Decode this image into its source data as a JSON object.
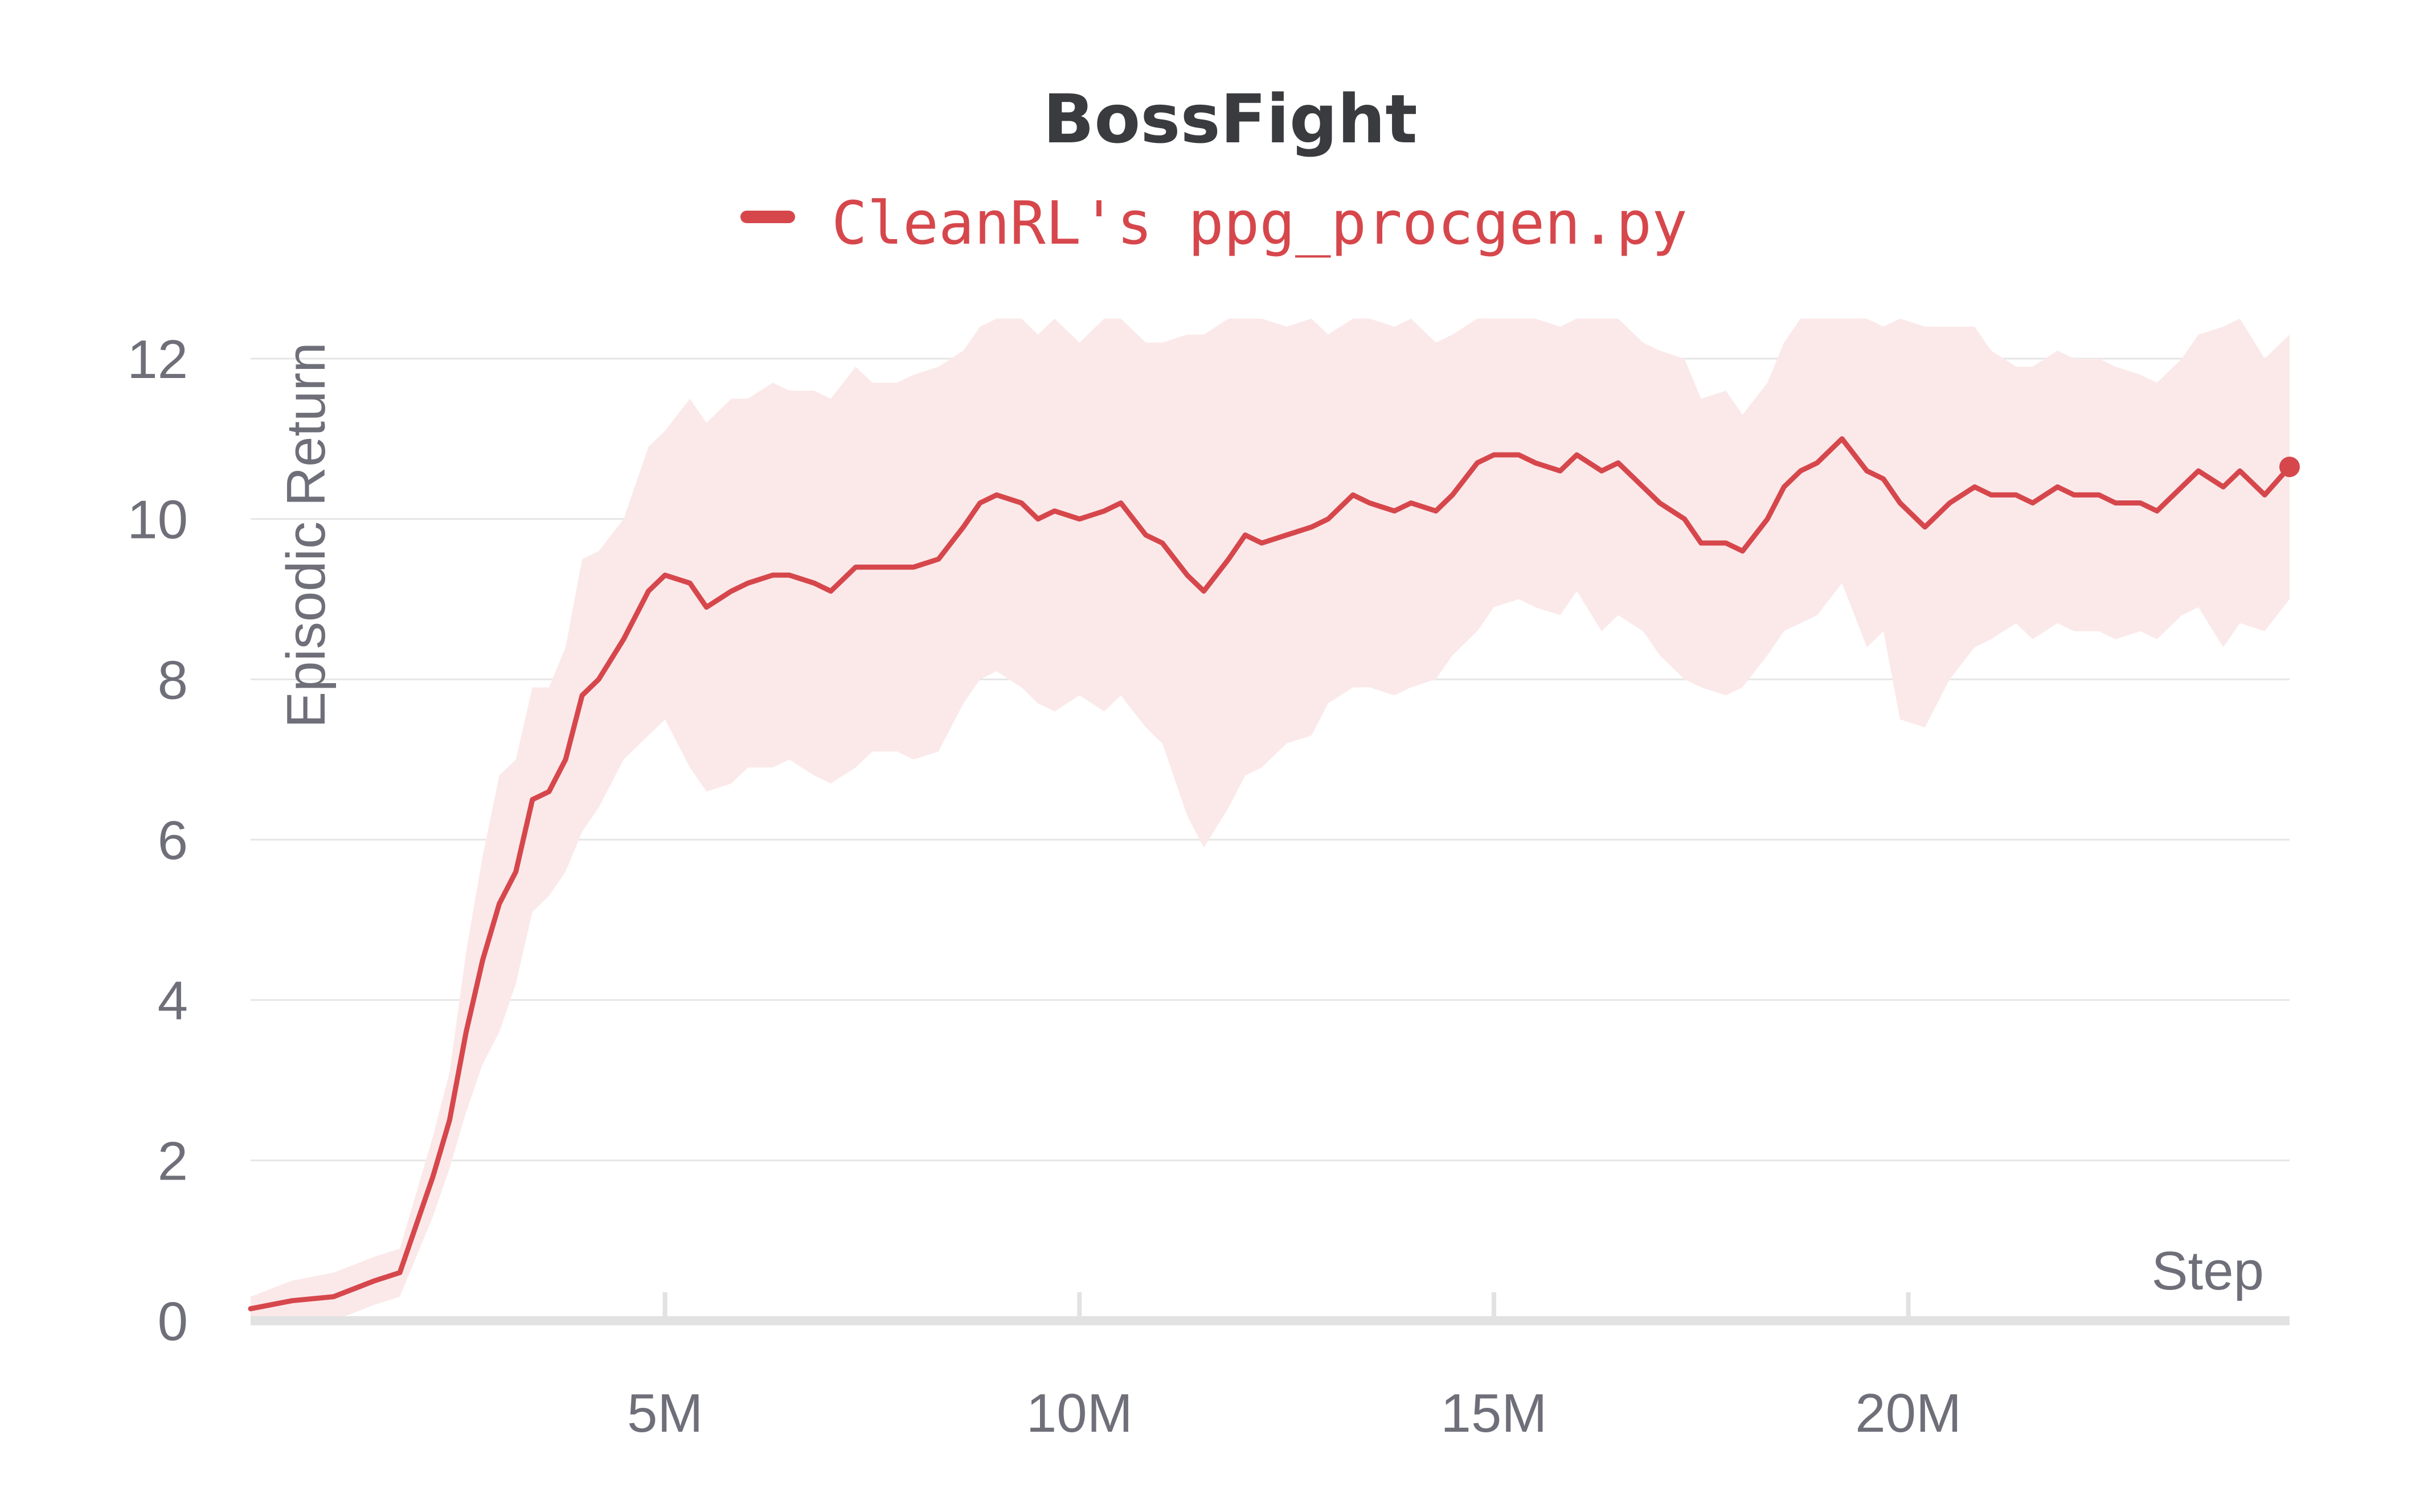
{
  "chart_data": {
    "type": "line",
    "title": "BossFight",
    "xlabel": "Step",
    "ylabel": "Episodic Return",
    "xlim": [
      0,
      24600000
    ],
    "ylim": [
      0,
      12
    ],
    "x_ticks": [
      5000000,
      10000000,
      15000000,
      20000000
    ],
    "x_tick_labels": [
      "5M",
      "10M",
      "15M",
      "20M"
    ],
    "y_ticks": [
      0,
      2,
      4,
      6,
      8,
      10,
      12
    ],
    "y_tick_labels": [
      "0",
      "2",
      "4",
      "6",
      "8",
      "10",
      "12"
    ],
    "grid": true,
    "legend_position": "top-center",
    "series": [
      {
        "name": "CleanRL's ppg_procgen.py",
        "color": "#d6474c",
        "band_color": "#fbe9ea",
        "x": [
          0,
          500000,
          1000000,
          1500000,
          1800000,
          2000000,
          2200000,
          2400000,
          2600000,
          2800000,
          3000000,
          3200000,
          3400000,
          3600000,
          3800000,
          4000000,
          4200000,
          4500000,
          4800000,
          5000000,
          5300000,
          5500000,
          5800000,
          6000000,
          6300000,
          6500000,
          6800000,
          7000000,
          7300000,
          7500000,
          7800000,
          8000000,
          8300000,
          8600000,
          8800000,
          9000000,
          9300000,
          9500000,
          9700000,
          10000000,
          10300000,
          10500000,
          10800000,
          11000000,
          11300000,
          11500000,
          11800000,
          12000000,
          12200000,
          12500000,
          12800000,
          13000000,
          13300000,
          13500000,
          13800000,
          14000000,
          14300000,
          14500000,
          14800000,
          15000000,
          15300000,
          15500000,
          15800000,
          16000000,
          16300000,
          16500000,
          16800000,
          17000000,
          17300000,
          17500000,
          17800000,
          18000000,
          18300000,
          18500000,
          18700000,
          18900000,
          19200000,
          19500000,
          19700000,
          19900000,
          20200000,
          20500000,
          20800000,
          21000000,
          21300000,
          21500000,
          21800000,
          22000000,
          22300000,
          22500000,
          22800000,
          23000000,
          23300000,
          23500000,
          23800000,
          24000000,
          24300000,
          24600000
        ],
        "values": [
          0.15,
          0.25,
          0.3,
          0.5,
          0.6,
          1.2,
          1.8,
          2.5,
          3.6,
          4.5,
          5.2,
          5.6,
          6.5,
          6.6,
          7.0,
          7.8,
          8.0,
          8.5,
          9.1,
          9.3,
          9.2,
          8.9,
          9.1,
          9.2,
          9.3,
          9.3,
          9.2,
          9.1,
          9.4,
          9.4,
          9.4,
          9.4,
          9.5,
          9.9,
          10.2,
          10.3,
          10.2,
          10.0,
          10.1,
          10.0,
          10.1,
          10.2,
          9.8,
          9.7,
          9.3,
          9.1,
          9.5,
          9.8,
          9.7,
          9.8,
          9.9,
          10.0,
          10.3,
          10.2,
          10.1,
          10.2,
          10.1,
          10.3,
          10.7,
          10.8,
          10.8,
          10.7,
          10.6,
          10.8,
          10.6,
          10.7,
          10.4,
          10.2,
          10.0,
          9.7,
          9.7,
          9.6,
          10.0,
          10.4,
          10.6,
          10.7,
          11.0,
          10.6,
          10.5,
          10.2,
          9.9,
          10.2,
          10.4,
          10.3,
          10.3,
          10.2,
          10.4,
          10.3,
          10.3,
          10.2,
          10.2,
          10.1,
          10.4,
          10.6,
          10.4,
          10.6,
          10.3,
          10.65
        ],
        "lower": [
          0.0,
          0.0,
          0.0,
          0.2,
          0.3,
          0.8,
          1.3,
          1.9,
          2.6,
          3.2,
          3.6,
          4.2,
          5.1,
          5.3,
          5.6,
          6.1,
          6.4,
          7.0,
          7.3,
          7.5,
          6.9,
          6.6,
          6.7,
          6.9,
          6.9,
          7.0,
          6.8,
          6.7,
          6.9,
          7.1,
          7.1,
          7.0,
          7.1,
          7.7,
          8.0,
          8.1,
          7.9,
          7.7,
          7.6,
          7.8,
          7.6,
          7.8,
          7.4,
          7.2,
          6.3,
          5.9,
          6.4,
          6.8,
          6.9,
          7.2,
          7.3,
          7.7,
          7.9,
          7.9,
          7.8,
          7.9,
          8.0,
          8.3,
          8.6,
          8.9,
          9.0,
          8.9,
          8.8,
          9.1,
          8.6,
          8.8,
          8.6,
          8.3,
          8.0,
          7.9,
          7.8,
          7.9,
          8.3,
          8.6,
          8.7,
          8.8,
          9.2,
          8.4,
          8.6,
          7.5,
          7.4,
          8.0,
          8.4,
          8.5,
          8.7,
          8.5,
          8.7,
          8.6,
          8.6,
          8.5,
          8.6,
          8.5,
          8.8,
          8.9,
          8.4,
          8.7,
          8.6,
          9.0
        ]
      }
    ]
  }
}
